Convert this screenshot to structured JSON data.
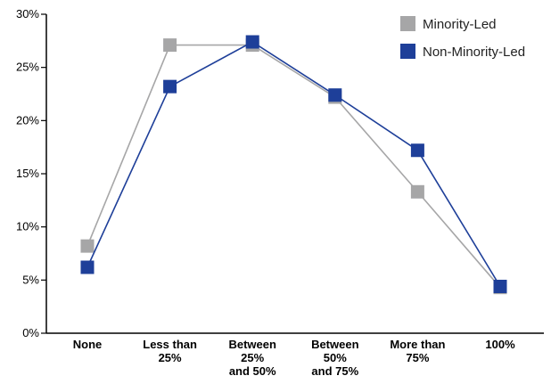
{
  "chart_data": {
    "type": "line",
    "categories": [
      [
        "None"
      ],
      [
        "Less than",
        "25%"
      ],
      [
        "Between",
        "25%",
        "and 50%"
      ],
      [
        "Between",
        "50%",
        "and 75%"
      ],
      [
        "More than",
        "75%"
      ],
      [
        "100%"
      ]
    ],
    "series": [
      {
        "name": "Minority-Led",
        "values": [
          8.2,
          27.1,
          27.1,
          22.2,
          13.3,
          4.3
        ],
        "color": "#a6a6a7",
        "marker": "square"
      },
      {
        "name": "Non-Minority-Led",
        "values": [
          6.2,
          23.2,
          27.4,
          22.4,
          17.2,
          4.4
        ],
        "color": "#1e3f99",
        "marker": "square"
      }
    ],
    "ylim": [
      0,
      30
    ],
    "yticks": [
      0,
      5,
      10,
      15,
      20,
      25,
      30
    ],
    "ytick_labels": [
      "0%",
      "5%",
      "10%",
      "15%",
      "20%",
      "25%",
      "30%"
    ],
    "grid": false,
    "legend": "top-right"
  }
}
